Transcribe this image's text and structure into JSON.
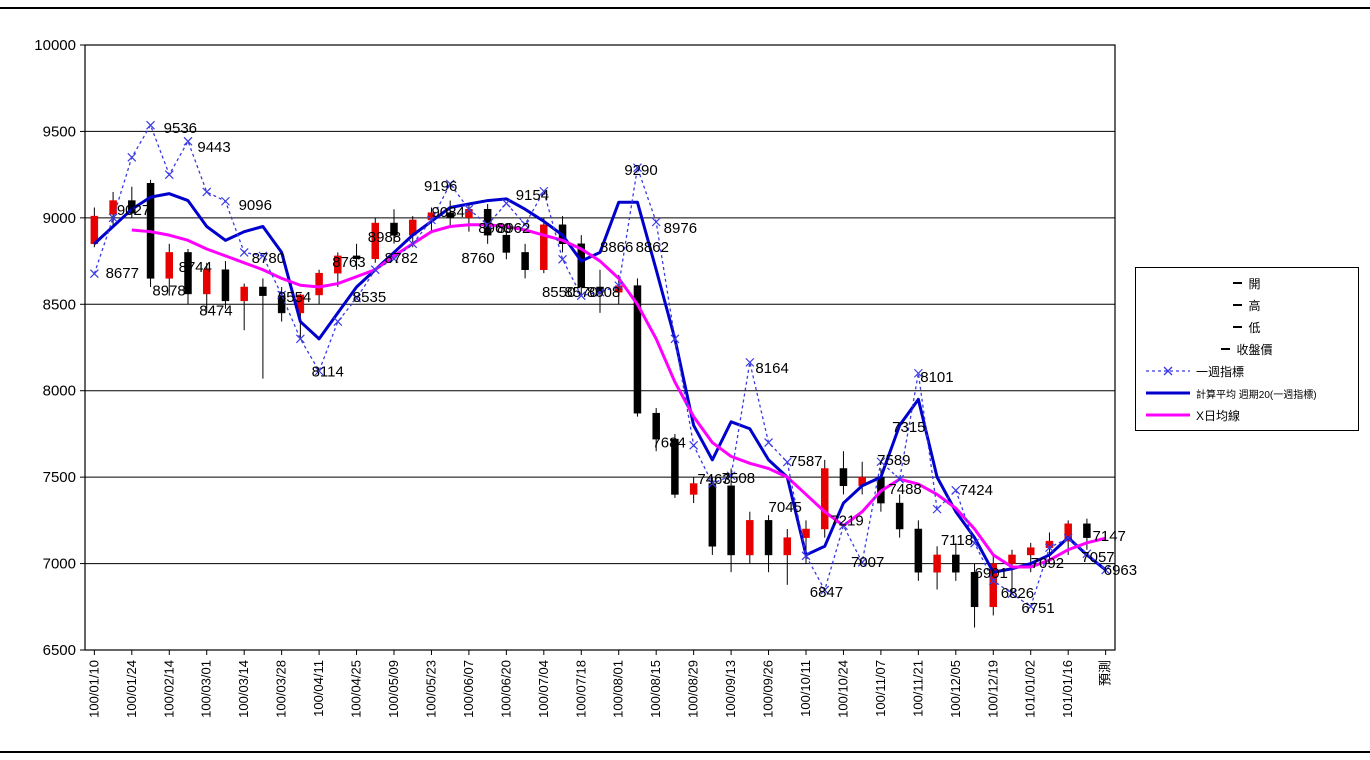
{
  "chart_data": {
    "type": "candlestick",
    "title": "",
    "y_axis": {
      "min": 6500,
      "max": 10000,
      "step": 500,
      "tick_labels": [
        "6500",
        "7000",
        "7500",
        "8000",
        "8500",
        "9000",
        "9500",
        "10000"
      ]
    },
    "x_tick_labels": [
      "100/01/10",
      "100/01/24",
      "100/02/14",
      "100/03/01",
      "100/03/14",
      "100/03/28",
      "100/04/11",
      "100/04/25",
      "100/05/09",
      "100/05/23",
      "100/06/07",
      "100/06/20",
      "100/07/04",
      "100/07/18",
      "100/08/01",
      "100/08/15",
      "100/08/29",
      "100/09/13",
      "100/09/26",
      "100/10/11",
      "100/10/24",
      "100/11/07",
      "100/11/21",
      "100/12/05",
      "100/12/19",
      "101/01/02",
      "101/01/16",
      "預測"
    ],
    "points_per_tick": 2,
    "n_points": 55,
    "grid_color": "#000000",
    "candle_colors": {
      "up": "#e60000",
      "down": "#000000"
    },
    "candles": [
      [
        8850,
        9060,
        8830,
        9010
      ],
      [
        9020,
        9150,
        8950,
        9100
      ],
      [
        9100,
        9180,
        9000,
        9027
      ],
      [
        9200,
        9220,
        8600,
        8650
      ],
      [
        8650,
        8850,
        8550,
        8800
      ],
      [
        8800,
        8820,
        8500,
        8560
      ],
      [
        8560,
        8740,
        8450,
        8700
      ],
      [
        8700,
        8750,
        8474,
        8520
      ],
      [
        8520,
        8620,
        8350,
        8600
      ],
      [
        8600,
        8650,
        8070,
        8550
      ],
      [
        8550,
        8600,
        8400,
        8450
      ],
      [
        8450,
        8560,
        8300,
        8554
      ],
      [
        8554,
        8700,
        8500,
        8680
      ],
      [
        8680,
        8800,
        8600,
        8780
      ],
      [
        8780,
        8850,
        8700,
        8763
      ],
      [
        8763,
        9000,
        8740,
        8970
      ],
      [
        8970,
        9050,
        8850,
        8900
      ],
      [
        8900,
        9010,
        8830,
        8988
      ],
      [
        8988,
        9060,
        8920,
        9030
      ],
      [
        9030,
        9100,
        8950,
        9000
      ],
      [
        9000,
        9084,
        8920,
        9050
      ],
      [
        9050,
        9080,
        8850,
        8900
      ],
      [
        8900,
        8962,
        8760,
        8800
      ],
      [
        8800,
        8850,
        8650,
        8700
      ],
      [
        8700,
        9000,
        8680,
        8960
      ],
      [
        8960,
        9010,
        8800,
        8850
      ],
      [
        8850,
        8900,
        8550,
        8600
      ],
      [
        8600,
        8700,
        8450,
        8570
      ],
      [
        8570,
        8670,
        8500,
        8608
      ],
      [
        8608,
        8650,
        7850,
        7870
      ],
      [
        7870,
        7900,
        7650,
        7720
      ],
      [
        7720,
        7750,
        7380,
        7400
      ],
      [
        7400,
        7500,
        7350,
        7463
      ],
      [
        7463,
        7500,
        7050,
        7100
      ],
      [
        7450,
        7550,
        6950,
        7050
      ],
      [
        7050,
        7300,
        7000,
        7250
      ],
      [
        7250,
        7280,
        6950,
        7050
      ],
      [
        7050,
        7200,
        6877,
        7150
      ],
      [
        7150,
        7250,
        7000,
        7200
      ],
      [
        7200,
        7600,
        7150,
        7550
      ],
      [
        7550,
        7650,
        7400,
        7450
      ],
      [
        7450,
        7589,
        7400,
        7500
      ],
      [
        7500,
        7550,
        7300,
        7350
      ],
      [
        7350,
        7400,
        7150,
        7200
      ],
      [
        7200,
        7250,
        6900,
        6950
      ],
      [
        6950,
        7100,
        6850,
        7050
      ],
      [
        7050,
        7118,
        6900,
        6950
      ],
      [
        6950,
        7000,
        6630,
        6750
      ],
      [
        6750,
        7050,
        6700,
        7000
      ],
      [
        7000,
        7080,
        6826,
        7050
      ],
      [
        7050,
        7120,
        6950,
        7092
      ],
      [
        7092,
        7180,
        7000,
        7130
      ],
      [
        7130,
        7250,
        7050,
        7230
      ],
      [
        7230,
        7260,
        7080,
        7150
      ]
    ],
    "series": [
      {
        "name": "一週指標",
        "style": "dashed",
        "marker": "x",
        "color": "#3a3ae6",
        "width": 1.3,
        "start": 0,
        "values": [
          8677,
          9000,
          9350,
          9536,
          9250,
          9443,
          9150,
          9096,
          8800,
          8780,
          8554,
          8300,
          8114,
          8400,
          8535,
          8700,
          8763,
          8850,
          8988,
          9196,
          9050,
          8960,
          9084,
          8962,
          9154,
          8760,
          8550,
          8570,
          8608,
          9290,
          8976,
          8300,
          7684,
          7463,
          7508,
          8164,
          7700,
          7587,
          7045,
          6847,
          7219,
          7007,
          7589,
          7488,
          8101,
          7315,
          7424,
          7118,
          6901,
          6826,
          6751,
          7092,
          7147,
          7057,
          6963
        ]
      },
      {
        "name": "計算平均 週期20(一週指標)",
        "style": "solid",
        "marker": "none",
        "color": "#0000cd",
        "width": 3,
        "start": 0,
        "values": [
          8850,
          8950,
          9050,
          9120,
          9140,
          9100,
          8950,
          8870,
          8920,
          8950,
          8800,
          8400,
          8300,
          8450,
          8600,
          8700,
          8800,
          8900,
          8980,
          9060,
          9080,
          9100,
          9110,
          9050,
          8980,
          8900,
          8750,
          8800,
          9090,
          9090,
          8700,
          8300,
          7800,
          7600,
          7820,
          7780,
          7600,
          7500,
          7050,
          7100,
          7350,
          7450,
          7500,
          7800,
          7950,
          7500,
          7300,
          7150,
          6950,
          6970,
          7000,
          7050,
          7150,
          7050,
          6963
        ]
      },
      {
        "name": "X日均線",
        "style": "solid",
        "marker": "none",
        "color": "#ff00ff",
        "width": 3,
        "start": 2,
        "values": [
          8930,
          8920,
          8900,
          8870,
          8820,
          8780,
          8740,
          8700,
          8650,
          8610,
          8600,
          8620,
          8660,
          8700,
          8780,
          8850,
          8920,
          8950,
          8960,
          8960,
          8950,
          8930,
          8900,
          8870,
          8820,
          8750,
          8650,
          8500,
          8300,
          8050,
          7850,
          7700,
          7620,
          7580,
          7550,
          7500,
          7400,
          7300,
          7219,
          7300,
          7420,
          7488,
          7460,
          7400,
          7320,
          7200,
          7050,
          6980,
          6980,
          7020,
          7080,
          7120,
          7147
        ]
      }
    ],
    "annotations": [
      {
        "i": 0.6,
        "v": 8680,
        "t": "8677"
      },
      {
        "i": 1.2,
        "v": 9045,
        "t": "9027"
      },
      {
        "i": 3.7,
        "v": 9520,
        "t": "9536"
      },
      {
        "i": 5.5,
        "v": 9410,
        "t": "9443"
      },
      {
        "i": 3.1,
        "v": 8580,
        "t": "8978"
      },
      {
        "i": 4.5,
        "v": 8715,
        "t": "8744"
      },
      {
        "i": 7.7,
        "v": 9075,
        "t": "9096"
      },
      {
        "i": 5.6,
        "v": 8465,
        "t": "8474"
      },
      {
        "i": 8.4,
        "v": 8768,
        "t": "8780"
      },
      {
        "i": 9.8,
        "v": 8542,
        "t": "8554"
      },
      {
        "i": 11.6,
        "v": 8110,
        "t": "8114"
      },
      {
        "i": 13.8,
        "v": 8542,
        "t": "8535"
      },
      {
        "i": 12.7,
        "v": 8745,
        "t": "8763"
      },
      {
        "i": 15.5,
        "v": 8768,
        "t": "8782"
      },
      {
        "i": 14.6,
        "v": 8890,
        "t": "8988"
      },
      {
        "i": 17.6,
        "v": 9185,
        "t": "9196"
      },
      {
        "i": 18.0,
        "v": 9034,
        "t": "9084"
      },
      {
        "i": 20.5,
        "v": 8941,
        "t": "8960"
      },
      {
        "i": 21.5,
        "v": 8941,
        "t": "8962"
      },
      {
        "i": 22.5,
        "v": 9132,
        "t": "9154"
      },
      {
        "i": 19.6,
        "v": 8768,
        "t": "8760"
      },
      {
        "i": 23.9,
        "v": 8571,
        "t": "8550"
      },
      {
        "i": 25.1,
        "v": 8571,
        "t": "8570"
      },
      {
        "i": 26.3,
        "v": 8571,
        "t": "8608"
      },
      {
        "i": 28.3,
        "v": 9277,
        "t": "9290"
      },
      {
        "i": 27.0,
        "v": 8831,
        "t": "8866"
      },
      {
        "i": 28.9,
        "v": 8831,
        "t": "8862"
      },
      {
        "i": 30.4,
        "v": 8941,
        "t": "8976"
      },
      {
        "i": 29.8,
        "v": 7700,
        "t": "7684"
      },
      {
        "i": 32.2,
        "v": 7490,
        "t": "7463"
      },
      {
        "i": 33.5,
        "v": 7495,
        "t": "7508"
      },
      {
        "i": 35.3,
        "v": 8132,
        "t": "8164"
      },
      {
        "i": 37.1,
        "v": 7593,
        "t": "7587"
      },
      {
        "i": 36.0,
        "v": 7327,
        "t": "7045"
      },
      {
        "i": 39.3,
        "v": 7250,
        "t": "7219"
      },
      {
        "i": 40.4,
        "v": 7009,
        "t": "7007"
      },
      {
        "i": 38.2,
        "v": 6836,
        "t": "6847"
      },
      {
        "i": 41.8,
        "v": 7598,
        "t": "7589"
      },
      {
        "i": 42.4,
        "v": 7432,
        "t": "7488"
      },
      {
        "i": 42.6,
        "v": 7790,
        "t": "7315"
      },
      {
        "i": 44.1,
        "v": 8080,
        "t": "8101"
      },
      {
        "i": 46.2,
        "v": 7426,
        "t": "7424"
      },
      {
        "i": 45.2,
        "v": 7137,
        "t": "7118"
      },
      {
        "i": 47.0,
        "v": 6946,
        "t": "6901"
      },
      {
        "i": 48.4,
        "v": 6830,
        "t": "6826"
      },
      {
        "i": 49.5,
        "v": 6743,
        "t": "6751"
      },
      {
        "i": 50.0,
        "v": 7004,
        "t": "7092"
      },
      {
        "i": 53.3,
        "v": 7160,
        "t": "7147"
      },
      {
        "i": 52.7,
        "v": 7039,
        "t": "7057"
      },
      {
        "i": 53.9,
        "v": 6963,
        "t": "6963"
      }
    ]
  },
  "legend": {
    "items": [
      {
        "label": "開"
      },
      {
        "label": "高"
      },
      {
        "label": "低"
      },
      {
        "label": "收盤價"
      },
      {
        "label": "一週指標"
      },
      {
        "label": "計算平均 週期20(一週指標)"
      },
      {
        "label": "X日均線"
      }
    ]
  }
}
